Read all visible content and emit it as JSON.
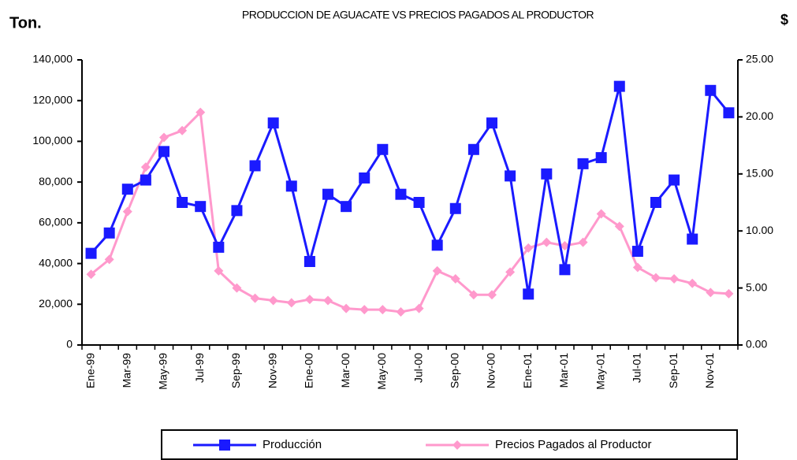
{
  "chart_data": {
    "type": "line",
    "title": "PRODUCCION DE AGUACATE VS PRECIOS PAGADOS AL PRODUCTOR",
    "y_label": "Ton.",
    "y2_label": "$",
    "categories": [
      "Ene-99",
      null,
      "Mar-99",
      null,
      "May-99",
      null,
      "Jul-99",
      null,
      "Sep-99",
      null,
      "Nov-99",
      null,
      "Ene-00",
      null,
      "Mar-00",
      null,
      "May-00",
      null,
      "Jul-00",
      null,
      "Sep-00",
      null,
      "Nov-00",
      null,
      "Ene-01",
      null,
      "Mar-01",
      null,
      "May-01",
      null,
      "Jul-01",
      null,
      "Sep-01",
      null,
      "Nov-01",
      null
    ],
    "series": [
      {
        "name": "Producción",
        "color": "#1a1aff",
        "marker": "square",
        "values": [
          45000,
          55000,
          76500,
          81000,
          95000,
          70000,
          68000,
          48000,
          66000,
          88000,
          109000,
          78000,
          41000,
          74000,
          68000,
          82000,
          96000,
          74000,
          70000,
          49000,
          67000,
          96000,
          109000,
          83000,
          25000,
          84000,
          37000,
          89000,
          92000,
          127000,
          46000,
          70000,
          81000,
          52000,
          125000,
          114000
        ]
      },
      {
        "name": "Precios Pagados al Productor",
        "color": "#ff99cc",
        "marker": "diamond",
        "axis": "y2",
        "values": [
          6.2,
          7.5,
          11.7,
          15.6,
          18.2,
          18.8,
          20.4,
          6.5,
          5.0,
          4.1,
          3.9,
          3.7,
          4.0,
          3.9,
          3.2,
          3.1,
          3.1,
          2.9,
          3.2,
          6.5,
          5.8,
          4.4,
          4.4,
          6.4,
          8.5,
          9.0,
          8.7,
          9.0,
          11.5,
          10.4,
          6.8,
          5.9,
          5.8,
          5.4,
          4.6,
          4.5
        ]
      }
    ],
    "ylim": [
      0,
      140000
    ],
    "yticks": [
      0,
      {
        "value": 20000,
        "label": "20,000"
      },
      {
        "value": 40000,
        "label": "40,000"
      },
      {
        "value": 60000,
        "label": "60,000"
      },
      {
        "value": 80000,
        "label": "80,000"
      },
      {
        "value": 100000,
        "label": "100,000"
      },
      {
        "value": 120000,
        "label": "120,000"
      },
      {
        "value": 140000,
        "label": "140,000"
      }
    ],
    "y2lim": [
      0,
      25
    ],
    "y2ticks": [
      {
        "value": 0,
        "label": "0.00"
      },
      {
        "value": 5,
        "label": "5.00"
      },
      {
        "value": 10,
        "label": "10.00"
      },
      {
        "value": 15,
        "label": "15.00"
      },
      {
        "value": 20,
        "label": "20.00"
      },
      {
        "value": 25,
        "label": "25.00"
      }
    ],
    "legend": "bottom"
  }
}
